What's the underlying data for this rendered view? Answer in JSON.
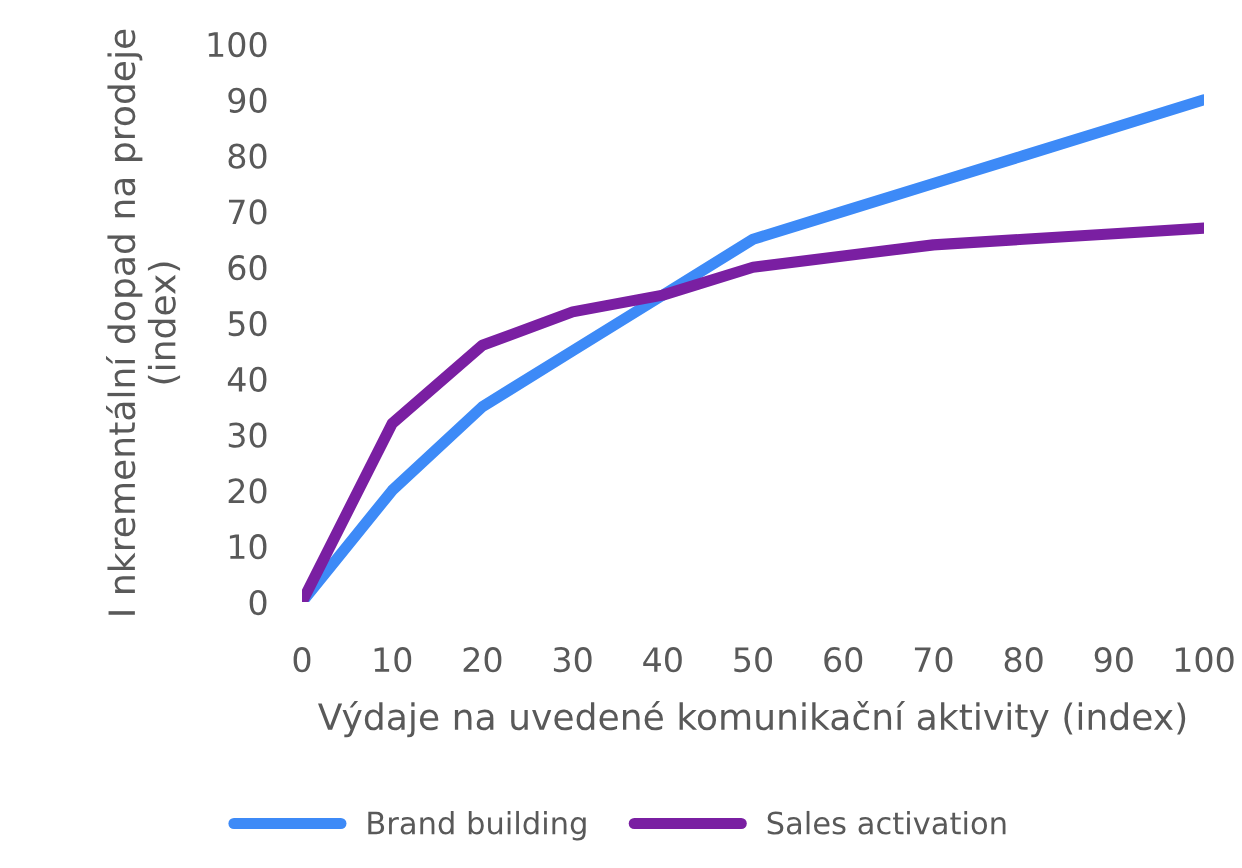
{
  "chart_data": {
    "type": "line",
    "xlabel": "Výdaje na uvedené komunikační aktivity (index)",
    "ylabel": "I nkrementální dopad na prodeje\n(index)",
    "x": [
      0,
      10,
      20,
      30,
      40,
      50,
      60,
      70,
      80,
      90,
      100
    ],
    "series": [
      {
        "name": "Brand building",
        "color": "#3d8af7",
        "values": [
          0,
          20,
          35,
          45,
          55,
          65,
          70,
          75,
          80,
          85,
          90
        ]
      },
      {
        "name": "Sales activation",
        "color": "#7a1fa2",
        "values": [
          0,
          32,
          46,
          52,
          55,
          60,
          62,
          64,
          65,
          66,
          67
        ]
      }
    ],
    "xlim": [
      0,
      100
    ],
    "xticks": [
      0,
      10,
      20,
      30,
      40,
      50,
      60,
      70,
      80,
      90,
      100
    ],
    "ylim": [
      0,
      100
    ],
    "yticks": [
      0,
      10,
      20,
      30,
      40,
      50,
      60,
      70,
      80,
      90,
      100
    ],
    "grid": false,
    "legend": "bottom",
    "marker": "none",
    "line_style": "solid"
  }
}
